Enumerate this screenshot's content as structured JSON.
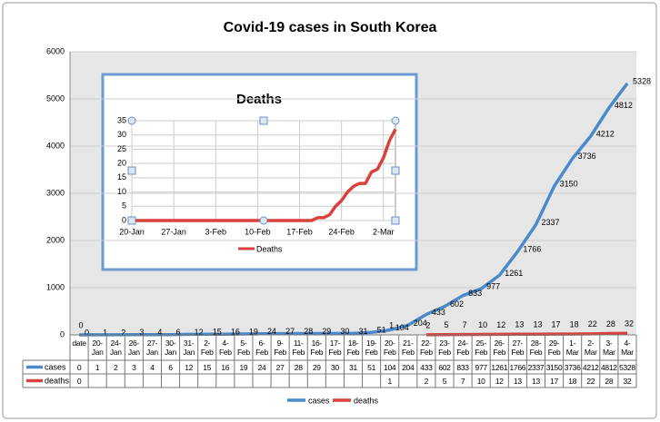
{
  "chart_data": [
    {
      "type": "line",
      "title": "Covid-19 cases in South Korea",
      "categories": [
        "date",
        "20-Jan",
        "24-Jan",
        "26-Jan",
        "27-Jan",
        "30-Jan",
        "31-Jan",
        "2-Feb",
        "4-Feb",
        "5-Feb",
        "6-Feb",
        "9-Feb",
        "11-Feb",
        "16-Feb",
        "17-Feb",
        "18-Feb",
        "19-Feb",
        "20-Feb",
        "21-Feb",
        "22-Feb",
        "23-Feb",
        "24-Feb",
        "25-Feb",
        "26-Feb",
        "27-Feb",
        "28-Feb",
        "29-Feb",
        "1-Mar",
        "2-Mar",
        "3-Mar",
        "4-Mar"
      ],
      "series": [
        {
          "name": "cases",
          "color": "#4a8acb",
          "values": [
            0,
            1,
            2,
            3,
            4,
            6,
            12,
            15,
            16,
            19,
            24,
            27,
            28,
            29,
            30,
            31,
            51,
            104,
            204,
            433,
            602,
            833,
            977,
            1261,
            1766,
            2337,
            3150,
            3736,
            4212,
            4812,
            5328
          ]
        },
        {
          "name": "deaths",
          "color": "#d9413d",
          "values": [
            0,
            null,
            null,
            null,
            null,
            null,
            null,
            null,
            null,
            null,
            null,
            null,
            null,
            null,
            null,
            null,
            null,
            1,
            null,
            2,
            5,
            7,
            10,
            12,
            13,
            13,
            17,
            18,
            22,
            28,
            32
          ]
        }
      ],
      "ylim": [
        0,
        6000
      ],
      "yticks": [
        0,
        1000,
        2000,
        3000,
        4000,
        5000,
        6000
      ],
      "grid": true,
      "legend": "bottom"
    },
    {
      "type": "line",
      "title": "Deaths",
      "x": [
        "20-Jan",
        "19-Feb",
        "20-Feb",
        "21-Feb",
        "22-Feb",
        "23-Feb",
        "24-Feb",
        "25-Feb",
        "26-Feb",
        "27-Feb",
        "28-Feb",
        "29-Feb",
        "1-Mar",
        "2-Mar",
        "3-Mar",
        "4-Mar"
      ],
      "series": [
        {
          "name": "Deaths",
          "color": "#d9413d",
          "values": [
            0,
            0,
            1,
            1,
            2,
            5,
            7,
            10,
            12,
            13,
            13,
            17,
            18,
            22,
            28,
            32
          ]
        }
      ],
      "xlim": [
        "20-Jan",
        "4-Mar"
      ],
      "xticks": [
        "20-Jan",
        "27-Jan",
        "3-Feb",
        "10-Feb",
        "17-Feb",
        "24-Feb",
        "2-Mar"
      ],
      "ylim": [
        0,
        35
      ],
      "yticks": [
        0,
        5,
        10,
        15,
        20,
        25,
        30,
        35
      ],
      "grid": true,
      "legend": "bottom"
    }
  ]
}
